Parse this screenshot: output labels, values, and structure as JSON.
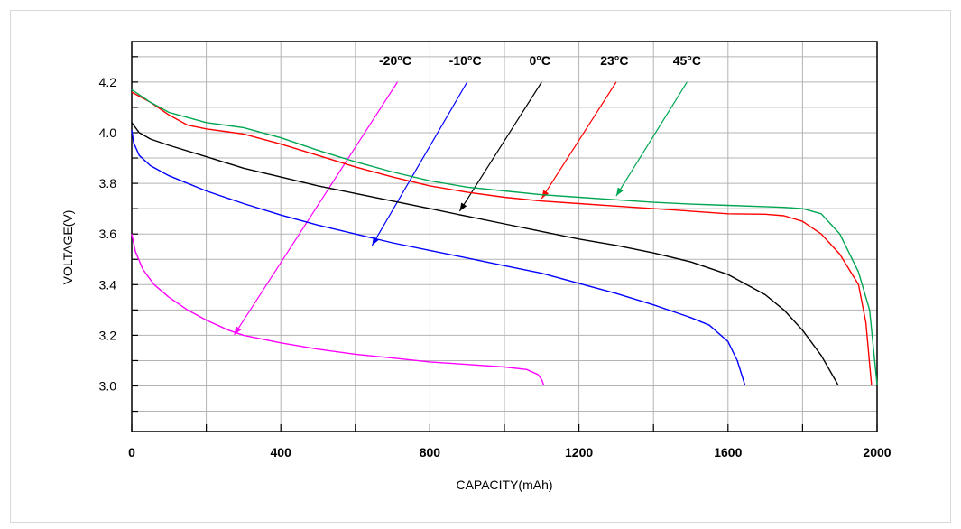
{
  "chart_data": {
    "type": "line",
    "title": "",
    "xlabel": "CAPACITY(mAh)",
    "ylabel": "VOLTAGE(V)",
    "xlim": [
      0,
      2000
    ],
    "ylim": [
      2.82,
      4.36
    ],
    "x_ticks": [
      0,
      400,
      800,
      1200,
      1600,
      2000
    ],
    "x_minor_step": 200,
    "y_ticks": [
      3.0,
      3.2,
      3.4,
      3.6,
      3.8,
      4.0,
      4.2
    ],
    "y_minor_step": 0.1,
    "grid": true,
    "series": [
      {
        "name": "-20°C",
        "label": "-20°C",
        "color": "#ff00ff",
        "label_at": [
          707,
          4.268
        ],
        "arrow_from": [
          713,
          4.2
        ],
        "arrow_to": [
          275,
          3.202
        ],
        "x": [
          0,
          10,
          30,
          60,
          100,
          150,
          200,
          260,
          300,
          400,
          500,
          600,
          700,
          800,
          900,
          1000,
          1060,
          1090,
          1100,
          1105
        ],
        "y": [
          3.6,
          3.53,
          3.46,
          3.4,
          3.35,
          3.3,
          3.26,
          3.22,
          3.2,
          3.17,
          3.145,
          3.125,
          3.11,
          3.095,
          3.085,
          3.075,
          3.065,
          3.045,
          3.025,
          3.005
        ]
      },
      {
        "name": "-10°C",
        "label": "-10°C",
        "color": "#0000ff",
        "label_at": [
          895,
          4.268
        ],
        "arrow_from": [
          900,
          4.2
        ],
        "arrow_to": [
          645,
          3.555
        ],
        "x": [
          0,
          5,
          20,
          50,
          100,
          200,
          300,
          400,
          500,
          600,
          700,
          800,
          900,
          1000,
          1100,
          1200,
          1300,
          1400,
          1500,
          1550,
          1600,
          1625,
          1645
        ],
        "y": [
          4.01,
          3.96,
          3.91,
          3.87,
          3.83,
          3.77,
          3.72,
          3.675,
          3.635,
          3.6,
          3.565,
          3.535,
          3.505,
          3.475,
          3.445,
          3.405,
          3.365,
          3.32,
          3.27,
          3.24,
          3.175,
          3.1,
          3.005
        ]
      },
      {
        "name": "0°C",
        "label": "0°C",
        "color": "#000000",
        "label_at": [
          1095,
          4.268
        ],
        "arrow_from": [
          1100,
          4.2
        ],
        "arrow_to": [
          880,
          3.69
        ],
        "x": [
          0,
          20,
          50,
          100,
          200,
          300,
          400,
          500,
          600,
          700,
          800,
          900,
          1000,
          1100,
          1200,
          1300,
          1400,
          1500,
          1600,
          1700,
          1750,
          1800,
          1850,
          1895
        ],
        "y": [
          4.04,
          4.0,
          3.975,
          3.95,
          3.905,
          3.86,
          3.825,
          3.79,
          3.76,
          3.73,
          3.7,
          3.67,
          3.64,
          3.61,
          3.58,
          3.555,
          3.525,
          3.49,
          3.44,
          3.36,
          3.3,
          3.22,
          3.12,
          3.005
        ]
      },
      {
        "name": "23°C",
        "label": "23°C",
        "color": "#ff0000",
        "label_at": [
          1295,
          4.268
        ],
        "arrow_from": [
          1300,
          4.2
        ],
        "arrow_to": [
          1100,
          3.74
        ],
        "x": [
          0,
          50,
          100,
          150,
          200,
          300,
          400,
          500,
          600,
          700,
          800,
          900,
          1000,
          1100,
          1200,
          1300,
          1400,
          1500,
          1600,
          1700,
          1750,
          1800,
          1850,
          1900,
          1950,
          1970,
          1985
        ],
        "y": [
          4.16,
          4.12,
          4.07,
          4.03,
          4.015,
          3.995,
          3.955,
          3.91,
          3.865,
          3.825,
          3.79,
          3.765,
          3.745,
          3.73,
          3.72,
          3.71,
          3.7,
          3.69,
          3.68,
          3.678,
          3.672,
          3.65,
          3.6,
          3.52,
          3.4,
          3.25,
          3.005
        ]
      },
      {
        "name": "45°C",
        "label": "45°C",
        "color": "#00a651",
        "label_at": [
          1490,
          4.268
        ],
        "arrow_from": [
          1490,
          4.2
        ],
        "arrow_to": [
          1300,
          3.75
        ],
        "x": [
          0,
          50,
          100,
          200,
          300,
          400,
          500,
          600,
          700,
          800,
          900,
          1000,
          1100,
          1200,
          1300,
          1400,
          1500,
          1600,
          1700,
          1750,
          1800,
          1850,
          1900,
          1950,
          1980,
          2000
        ],
        "y": [
          4.17,
          4.12,
          4.08,
          4.04,
          4.02,
          3.98,
          3.93,
          3.885,
          3.845,
          3.81,
          3.785,
          3.77,
          3.755,
          3.745,
          3.735,
          3.725,
          3.718,
          3.713,
          3.708,
          3.705,
          3.7,
          3.68,
          3.6,
          3.45,
          3.3,
          3.005
        ]
      }
    ]
  }
}
